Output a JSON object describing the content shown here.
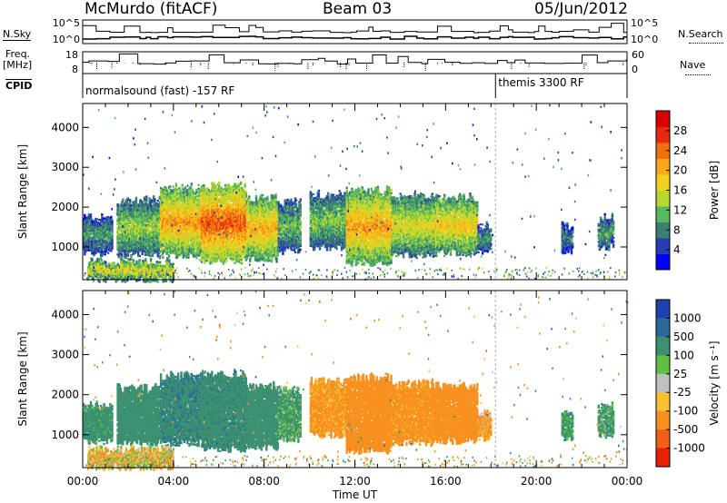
{
  "header": {
    "station": "McMurdo (fitACF)",
    "beam": "Beam 03",
    "date": "05/Jun/2012"
  },
  "sidebar": {
    "nsky_label": "N.Sky",
    "nsearch_label": "N.Search",
    "freq_label": "Freq.",
    "freq_unit": "[MHz]",
    "nave_label": "Nave",
    "cpid_label": "CPID"
  },
  "cpid_segments": [
    {
      "label": "normalsound (fast) -157 RF",
      "start_hour": 0
    },
    {
      "label": "themis 3300 RF",
      "start_hour": 18.2
    }
  ],
  "chart_data": [
    {
      "type": "line",
      "name": "noise",
      "y_ticks_left": [
        "10^5",
        "10^0"
      ],
      "y_ticks_right": [
        "10^5",
        "10^0"
      ],
      "xlim": [
        0,
        24
      ]
    },
    {
      "type": "line",
      "name": "frequency-nave",
      "y_ticks_left": [
        "18",
        "8"
      ],
      "y_ticks_right": [
        "60",
        "0"
      ],
      "ylim_left": [
        8,
        18
      ],
      "ylim_right": [
        0,
        60
      ],
      "xlim": [
        0,
        24
      ]
    },
    {
      "type": "heatmap",
      "name": "power",
      "ylabel": "Slant Range [km]",
      "yticks": [
        1000,
        2000,
        3000,
        4000
      ],
      "ylim": [
        180,
        4600
      ],
      "xlim": [
        0,
        24
      ],
      "colorbar": {
        "label": "Power [dB]",
        "ticks": [
          4,
          8,
          12,
          16,
          20,
          24,
          28
        ],
        "range": [
          0,
          32
        ],
        "colors": [
          "#0000ff",
          "#2a3cb4",
          "#3a8070",
          "#58b860",
          "#b8d830",
          "#f0d020",
          "#f8a818",
          "#f07010",
          "#e82810",
          "#d80000"
        ]
      }
    },
    {
      "type": "heatmap",
      "name": "velocity",
      "ylabel": "Slant Range [km]",
      "yticks": [
        1000,
        2000,
        3000,
        4000
      ],
      "ylim": [
        180,
        4600
      ],
      "xlim": [
        0,
        24
      ],
      "xlabel": "Time UT",
      "xtick_labels": [
        "00:00",
        "04:00",
        "08:00",
        "12:00",
        "16:00",
        "20:00",
        "00:00"
      ],
      "colorbar": {
        "label": "Velocity [m s⁻¹]",
        "ticks": [
          "1000",
          "500",
          "100",
          "25",
          "-25",
          "-100",
          "-500",
          "-1000"
        ],
        "colors": [
          "#2040b0",
          "#2a6a98",
          "#3a9070",
          "#60c040",
          "#c0c0c0",
          "#f8c030",
          "#f89020",
          "#f06018",
          "#e82008"
        ]
      }
    }
  ],
  "echo_regions": [
    {
      "t0": 0.0,
      "t1": 1.3,
      "r0": 850,
      "r1": 1700,
      "power": 10,
      "vel": 220
    },
    {
      "t0": 1.5,
      "t1": 3.4,
      "r0": 800,
      "r1": 2150,
      "power": 14,
      "vel": 280
    },
    {
      "t0": 3.4,
      "t1": 5.2,
      "r0": 800,
      "r1": 2450,
      "power": 22,
      "vel": 420
    },
    {
      "t0": 5.2,
      "t1": 7.2,
      "r0": 650,
      "r1": 2500,
      "power": 26,
      "vel": 380
    },
    {
      "t0": 7.2,
      "t1": 8.6,
      "r0": 700,
      "r1": 2200,
      "power": 21,
      "vel": 300
    },
    {
      "t0": 8.6,
      "t1": 9.6,
      "r0": 900,
      "r1": 2100,
      "power": 12,
      "vel": 150
    },
    {
      "t0": 10.0,
      "t1": 11.6,
      "r0": 1000,
      "r1": 2300,
      "power": 13,
      "vel": -180
    },
    {
      "t0": 11.6,
      "t1": 13.6,
      "r0": 600,
      "r1": 2400,
      "power": 22,
      "vel": -260
    },
    {
      "t0": 13.6,
      "t1": 15.5,
      "r0": 800,
      "r1": 2250,
      "power": 17,
      "vel": -220
    },
    {
      "t0": 15.5,
      "t1": 17.4,
      "r0": 850,
      "r1": 2200,
      "power": 19,
      "vel": -260
    },
    {
      "t0": 17.4,
      "t1": 18.0,
      "r0": 900,
      "r1": 1500,
      "power": 10,
      "vel": -140
    },
    {
      "t0": 21.1,
      "t1": 21.6,
      "r0": 900,
      "r1": 1500,
      "power": 9,
      "vel": 180
    },
    {
      "t0": 22.7,
      "t1": 23.4,
      "r0": 1000,
      "r1": 1700,
      "power": 11,
      "vel": 140
    },
    {
      "t0": 0.2,
      "t1": 4.0,
      "r0": 200,
      "r1": 600,
      "power": 18,
      "vel": -60
    }
  ]
}
